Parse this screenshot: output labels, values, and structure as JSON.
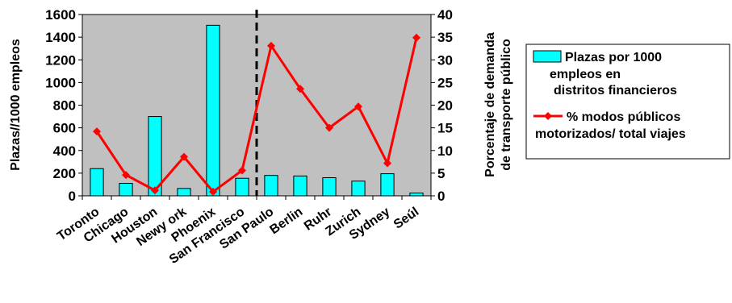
{
  "chart_data": {
    "type": "bar+line",
    "categories": [
      "Toronto",
      "Chicago",
      "Houston",
      "Newy ork",
      "Phoenix",
      "San Francisco",
      "San Paulo",
      "Berlin",
      "Ruhr",
      "Zurich",
      "Sydney",
      "Seúl"
    ],
    "series": [
      {
        "name": "Plazas por 1000 empleos en distritos financieros",
        "type": "bar",
        "axis": "left",
        "color": "#00ffff",
        "values": [
          240,
          110,
          700,
          65,
          1505,
          155,
          180,
          175,
          160,
          130,
          195,
          25
        ]
      },
      {
        "name": "% modos públicos motorizados/ total viajes",
        "type": "line",
        "axis": "right",
        "color": "#ff0000",
        "values": [
          14.2,
          4.6,
          1.2,
          8.6,
          0.9,
          5.6,
          33.1,
          23.6,
          15.0,
          19.7,
          7.2,
          34.9
        ]
      }
    ],
    "ylabel_left": "Plazas//1000 empleos",
    "ylabel_right_lines": [
      "Porcentaje de demanda",
      "de transporte público"
    ],
    "ylim_left": [
      0,
      1600
    ],
    "yticks_left": [
      0,
      200,
      400,
      600,
      800,
      1000,
      1200,
      1400,
      1600
    ],
    "ylim_right": [
      0,
      40
    ],
    "yticks_right": [
      0,
      5,
      10,
      15,
      20,
      25,
      30,
      35,
      40
    ],
    "plot_background": "#c0c0c0",
    "divider_after_category": "San Francisco",
    "legend_position": "right",
    "legend_lines": [
      [
        "Plazas por 1000",
        "empleos en",
        "distritos financieros"
      ],
      [
        "% modos públicos",
        "motorizados/ total viajes"
      ]
    ],
    "grid": false
  }
}
